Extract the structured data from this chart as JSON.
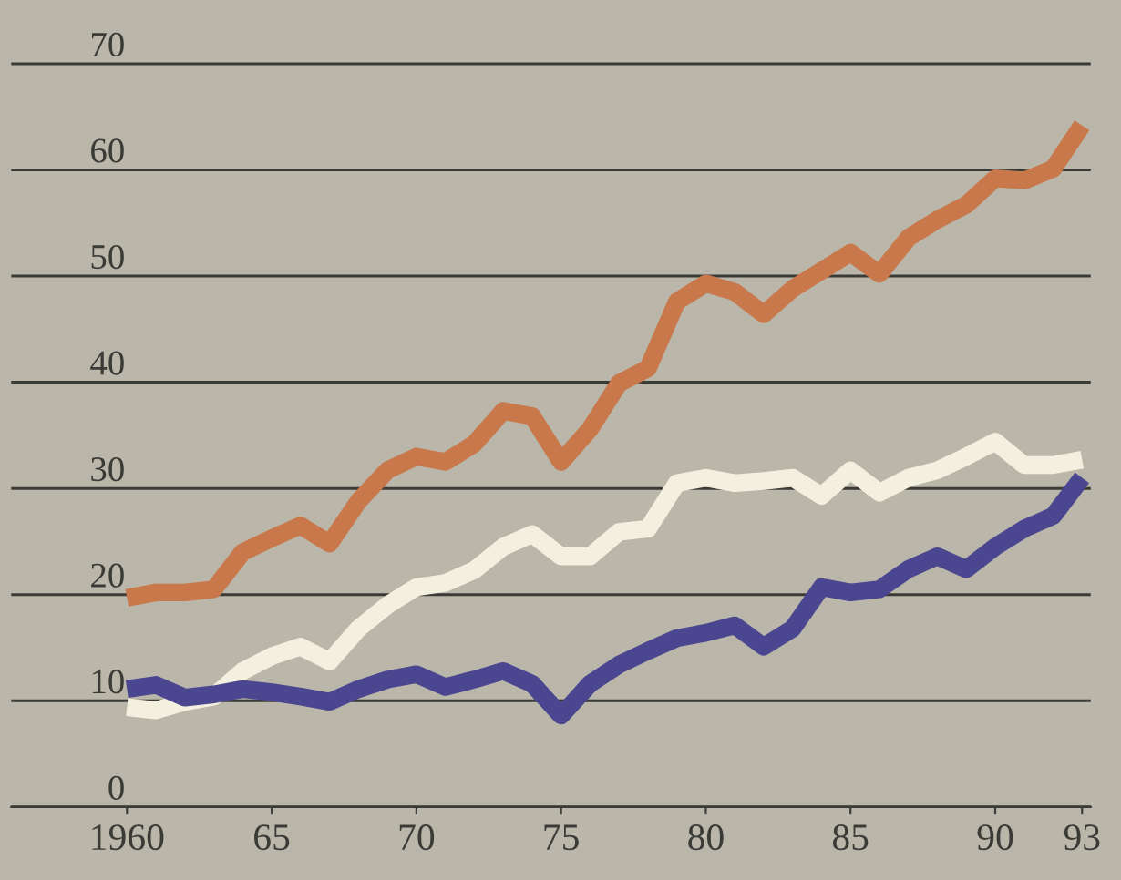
{
  "chart_data": {
    "type": "line",
    "x": [
      1960,
      1961,
      1962,
      1963,
      1964,
      1965,
      1966,
      1967,
      1968,
      1969,
      1970,
      1971,
      1972,
      1973,
      1974,
      1975,
      1976,
      1977,
      1978,
      1979,
      1980,
      1981,
      1982,
      1983,
      1984,
      1985,
      1986,
      1987,
      1988,
      1989,
      1990,
      1991,
      1992,
      1993
    ],
    "series": [
      {
        "color": "#c8784a",
        "values": [
          19.7,
          20.2,
          20.2,
          20.5,
          24,
          25.3,
          26.5,
          24.8,
          28.8,
          31.7,
          33,
          32.5,
          34.2,
          37.3,
          36.8,
          32.5,
          35.6,
          39.9,
          41.3,
          47.6,
          49.3,
          48.5,
          46.4,
          48.8,
          50.5,
          52.2,
          50.2,
          53.6,
          55.3,
          56.7,
          59.2,
          59,
          60.1,
          64.2
        ]
      },
      {
        "color": "#f4f0e0",
        "values": [
          9.4,
          9.1,
          9.9,
          10.4,
          12.8,
          14.2,
          15.1,
          13.7,
          16.8,
          19,
          20.7,
          21.1,
          22.3,
          24.5,
          25.7,
          23.6,
          23.6,
          25.9,
          26.2,
          30.5,
          31,
          30.5,
          30.7,
          31,
          29.3,
          31.7,
          29.6,
          31,
          31.7,
          33,
          34.4,
          32.2,
          32.2,
          32.7
        ]
      },
      {
        "color": "#4a4690",
        "values": [
          11.1,
          11.5,
          10.3,
          10.6,
          11.1,
          10.8,
          10.4,
          9.9,
          11.1,
          12,
          12.5,
          11.3,
          12,
          12.8,
          11.6,
          8.6,
          11.6,
          13.4,
          14.7,
          15.9,
          16.4,
          17.1,
          15.1,
          16.8,
          20.7,
          20.2,
          20.5,
          22.4,
          23.6,
          22.4,
          24.5,
          26.2,
          27.4,
          31
        ]
      }
    ],
    "xlim": [
      1956.0,
      1993.3
    ],
    "ylim": [
      0,
      76
    ],
    "xticks": [
      1960,
      {
        "value": 1965,
        "label": "65"
      },
      {
        "value": 1970,
        "label": "70"
      },
      {
        "value": 1975,
        "label": "75"
      },
      {
        "value": 1980,
        "label": "80"
      },
      {
        "value": 1985,
        "label": "85"
      },
      {
        "value": 1990,
        "label": "90"
      },
      {
        "value": 1993,
        "label": "93"
      }
    ],
    "yticks": [
      0,
      10,
      20,
      30,
      40,
      50,
      60,
      70
    ],
    "grid": "y",
    "line_style": "solid",
    "marker": "none"
  }
}
